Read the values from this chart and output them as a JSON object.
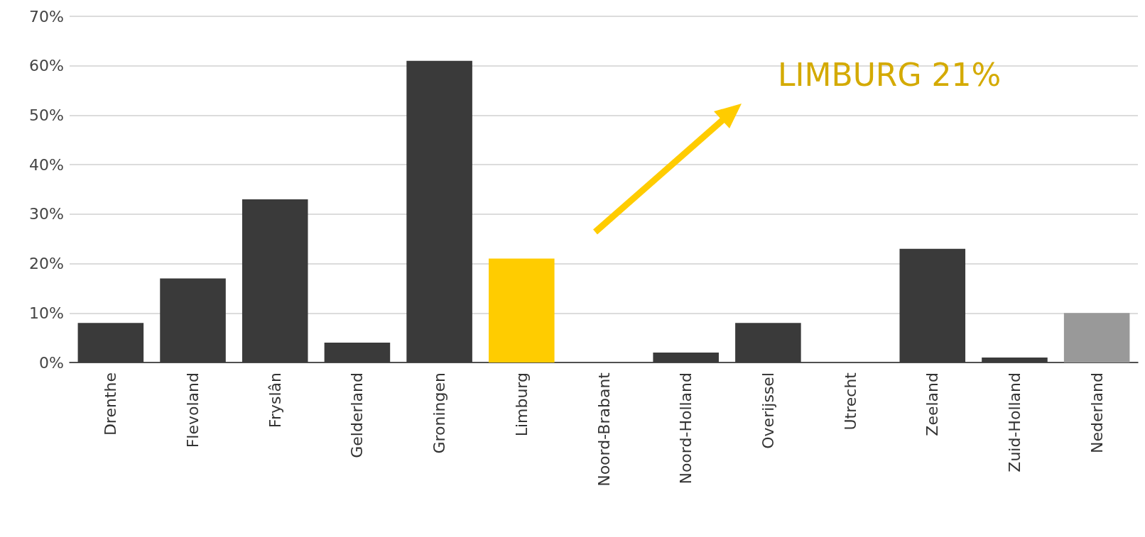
{
  "chart_data": {
    "type": "bar",
    "categories": [
      "Drenthe",
      "Flevoland",
      "Fryslân",
      "Gelderland",
      "Groningen",
      "Limburg",
      "Noord-Brabant",
      "Noord-Holland",
      "Overijssel",
      "Utrecht",
      "Zeeland",
      "Zuid-Holland",
      "Nederland"
    ],
    "values": [
      8,
      17,
      33,
      4,
      61,
      21,
      0,
      2,
      8,
      0,
      23,
      1,
      10
    ],
    "colors": [
      "#3a3a3a",
      "#3a3a3a",
      "#3a3a3a",
      "#3a3a3a",
      "#3a3a3a",
      "#ffcc00",
      "#3a3a3a",
      "#3a3a3a",
      "#3a3a3a",
      "#3a3a3a",
      "#3a3a3a",
      "#3a3a3a",
      "#999999"
    ],
    "ylim": [
      0,
      70
    ],
    "yticks": [
      {
        "value": 0,
        "label": "0%"
      },
      {
        "value": 10,
        "label": "10%"
      },
      {
        "value": 20,
        "label": "20%"
      },
      {
        "value": 30,
        "label": "30%"
      },
      {
        "value": 40,
        "label": "40%"
      },
      {
        "value": 50,
        "label": "50%"
      },
      {
        "value": 60,
        "label": "60%"
      },
      {
        "value": 70,
        "label": "70%"
      }
    ],
    "grid": "y",
    "annotations": [
      "LIMBURG 21%"
    ]
  }
}
